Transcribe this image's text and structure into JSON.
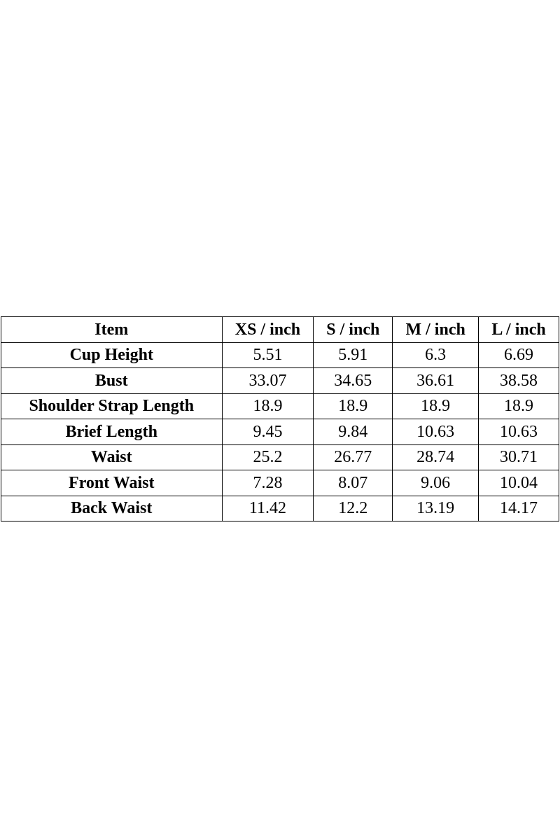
{
  "table": {
    "header": [
      "Item",
      "XS / inch",
      "S / inch",
      "M / inch",
      "L / inch"
    ],
    "rows": [
      [
        "Cup Height",
        5.51,
        5.91,
        6.3,
        6.69
      ],
      [
        "Bust",
        33.07,
        34.65,
        36.61,
        38.58
      ],
      [
        "Shoulder Strap Length",
        18.9,
        18.9,
        18.9,
        18.9
      ],
      [
        "Brief Length",
        9.45,
        9.84,
        10.63,
        10.63
      ],
      [
        "Waist",
        25.2,
        26.77,
        28.74,
        30.71
      ],
      [
        "Front Waist",
        7.28,
        8.07,
        9.06,
        10.04
      ],
      [
        "Back Waist",
        11.42,
        12.2,
        13.19,
        14.17
      ]
    ]
  }
}
